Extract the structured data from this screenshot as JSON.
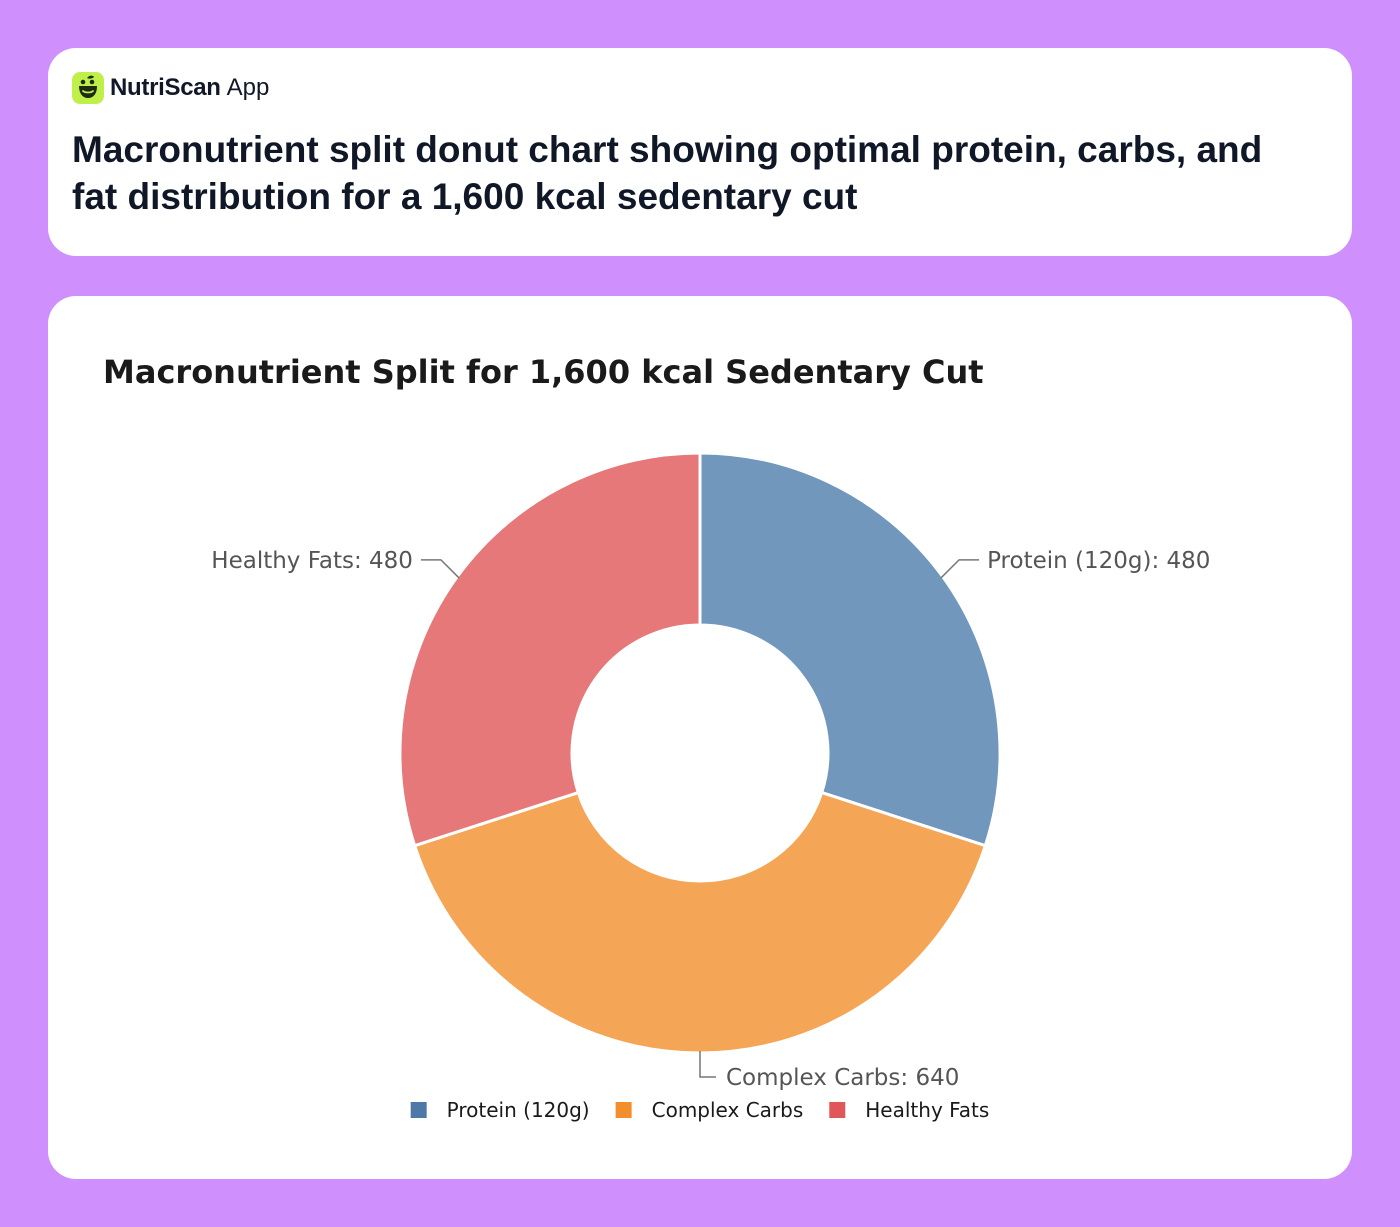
{
  "app": {
    "name": "NutriScan",
    "suffix": "App",
    "logo_icon": "smiley-leaf-icon",
    "logo_color": "#bff04a"
  },
  "headline": "Macronutrient split donut chart showing optimal protein, carbs, and fat distribution for a 1,600 kcal sedentary cut",
  "chart_data": {
    "type": "pie",
    "variant": "donut",
    "title": "Macronutrient Split for 1,600 kcal Sedentary Cut",
    "categories": [
      "Protein (120g)",
      "Complex Carbs",
      "Healthy Fats"
    ],
    "values": [
      480,
      640,
      480
    ],
    "labels": [
      "Protein (120g): 480",
      "Complex Carbs: 640",
      "Healthy Fats: 480"
    ],
    "colors": [
      "#7197bc",
      "#f4a555",
      "#e6787a"
    ],
    "legend_colors": [
      "#4e79a7",
      "#f28e2b",
      "#e15759"
    ],
    "start_angle_deg": 90,
    "direction": "clockwise",
    "legend": [
      "Protein (120g)",
      "Complex Carbs",
      "Healthy Fats"
    ],
    "legend_position": "bottom"
  }
}
